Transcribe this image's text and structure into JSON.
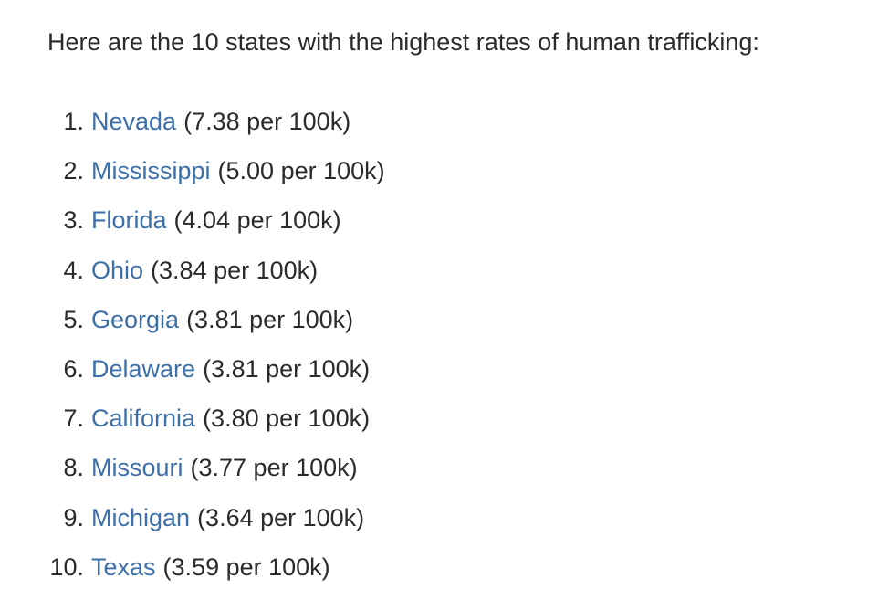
{
  "intro": "Here are the 10 states with the highest rates of human trafficking:",
  "items": [
    {
      "rank": "1.",
      "state": "Nevada",
      "rate": "(7.38 per 100k)"
    },
    {
      "rank": "2.",
      "state": "Mississippi",
      "rate": "(5.00 per 100k)"
    },
    {
      "rank": "3.",
      "state": "Florida",
      "rate": "(4.04 per 100k)"
    },
    {
      "rank": "4.",
      "state": "Ohio",
      "rate": "(3.84 per 100k)"
    },
    {
      "rank": "5.",
      "state": "Georgia",
      "rate": "(3.81 per 100k)"
    },
    {
      "rank": "6.",
      "state": "Delaware",
      "rate": "(3.81 per 100k)"
    },
    {
      "rank": "7.",
      "state": "California",
      "rate": "(3.80 per 100k)"
    },
    {
      "rank": "8.",
      "state": "Missouri",
      "rate": "(3.77 per 100k)"
    },
    {
      "rank": "9.",
      "state": "Michigan",
      "rate": "(3.64 per 100k)"
    },
    {
      "rank": "10.",
      "state": "Texas",
      "rate": "(3.59 per 100k)"
    }
  ]
}
